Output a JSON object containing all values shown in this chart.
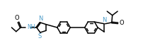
{
  "bg_color": "#ffffff",
  "line_color": "#000000",
  "nitrogen_color": "#4a9bc8",
  "sulfur_color": "#4a9bc8",
  "fig_width": 2.03,
  "fig_height": 0.78,
  "dpi": 100,
  "lw": 1.1,
  "font_size": 5.5,
  "xlim": [
    0.0,
    11.5
  ],
  "ylim": [
    0.5,
    4.8
  ]
}
